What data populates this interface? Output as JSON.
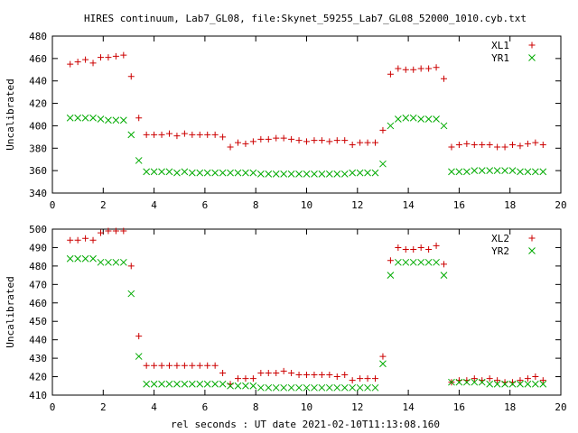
{
  "title": "HIRES continuum, Lab7_GL08, file:Skynet_59255_Lab7_GL08_52000_1010.cyb.txt",
  "xlabel": "rel seconds : UT date 2021-02-10T11:13:08.160",
  "chart_data": [
    {
      "type": "scatter",
      "ylabel": "Uncalibrated",
      "xlim": [
        0,
        20
      ],
      "ylim": [
        340,
        480
      ],
      "xticks": [
        0,
        2,
        4,
        6,
        8,
        10,
        12,
        14,
        16,
        18,
        20
      ],
      "yticks": [
        340,
        360,
        380,
        400,
        420,
        440,
        460,
        480
      ],
      "legend": "top-right",
      "series": [
        {
          "name": "XL1",
          "marker": "plus",
          "color": "#cc0000",
          "x": [
            0.7,
            1.0,
            1.3,
            1.6,
            1.9,
            2.2,
            2.5,
            2.8,
            3.1,
            3.4,
            3.7,
            4.0,
            4.3,
            4.6,
            4.9,
            5.2,
            5.5,
            5.8,
            6.1,
            6.4,
            6.7,
            7.0,
            7.3,
            7.6,
            7.9,
            8.2,
            8.5,
            8.8,
            9.1,
            9.4,
            9.7,
            10.0,
            10.3,
            10.6,
            10.9,
            11.2,
            11.5,
            11.8,
            12.1,
            12.4,
            12.7,
            13.0,
            13.3,
            13.6,
            13.9,
            14.2,
            14.5,
            14.8,
            15.1,
            15.4,
            15.7,
            16.0,
            16.3,
            16.6,
            16.9,
            17.2,
            17.5,
            17.8,
            18.1,
            18.4,
            18.7,
            19.0,
            19.3
          ],
          "y": [
            455,
            457,
            459,
            456,
            461,
            461,
            462,
            463,
            444,
            407,
            392,
            392,
            392,
            393,
            391,
            393,
            392,
            392,
            392,
            392,
            390,
            381,
            385,
            384,
            386,
            388,
            388,
            389,
            389,
            388,
            387,
            386,
            387,
            387,
            386,
            387,
            387,
            383,
            385,
            385,
            385,
            396,
            446,
            451,
            450,
            450,
            451,
            451,
            452,
            442,
            381,
            383,
            384,
            383,
            383,
            383,
            381,
            381,
            383,
            382,
            384,
            385,
            383
          ]
        },
        {
          "name": "YR1",
          "marker": "cross",
          "color": "#00aa00",
          "x": [
            0.7,
            1.0,
            1.3,
            1.6,
            1.9,
            2.2,
            2.5,
            2.8,
            3.1,
            3.4,
            3.7,
            4.0,
            4.3,
            4.6,
            4.9,
            5.2,
            5.5,
            5.8,
            6.1,
            6.4,
            6.7,
            7.0,
            7.3,
            7.6,
            7.9,
            8.2,
            8.5,
            8.8,
            9.1,
            9.4,
            9.7,
            10.0,
            10.3,
            10.6,
            10.9,
            11.2,
            11.5,
            11.8,
            12.1,
            12.4,
            12.7,
            13.0,
            13.3,
            13.6,
            13.9,
            14.2,
            14.5,
            14.8,
            15.1,
            15.4,
            15.7,
            16.0,
            16.3,
            16.6,
            16.9,
            17.2,
            17.5,
            17.8,
            18.1,
            18.4,
            18.7,
            19.0,
            19.3
          ],
          "y": [
            407,
            407,
            407,
            407,
            406,
            405,
            405,
            405,
            392,
            369,
            359,
            359,
            359,
            359,
            358,
            359,
            358,
            358,
            358,
            358,
            358,
            358,
            358,
            358,
            358,
            357,
            357,
            357,
            357,
            357,
            357,
            357,
            357,
            357,
            357,
            357,
            357,
            358,
            358,
            358,
            358,
            366,
            400,
            406,
            407,
            407,
            406,
            406,
            406,
            400,
            359,
            359,
            359,
            360,
            360,
            360,
            360,
            360,
            360,
            359,
            359,
            359,
            359
          ]
        }
      ]
    },
    {
      "type": "scatter",
      "ylabel": "Uncalibrated",
      "xlim": [
        0,
        20
      ],
      "ylim": [
        410,
        500
      ],
      "xticks": [
        0,
        2,
        4,
        6,
        8,
        10,
        12,
        14,
        16,
        18,
        20
      ],
      "yticks": [
        410,
        420,
        430,
        440,
        450,
        460,
        470,
        480,
        490,
        500
      ],
      "legend": "top-right",
      "series": [
        {
          "name": "XL2",
          "marker": "plus",
          "color": "#cc0000",
          "x": [
            0.7,
            1.0,
            1.3,
            1.6,
            1.9,
            2.2,
            2.5,
            2.8,
            3.1,
            3.4,
            3.7,
            4.0,
            4.3,
            4.6,
            4.9,
            5.2,
            5.5,
            5.8,
            6.1,
            6.4,
            6.7,
            7.0,
            7.3,
            7.6,
            7.9,
            8.2,
            8.5,
            8.8,
            9.1,
            9.4,
            9.7,
            10.0,
            10.3,
            10.6,
            10.9,
            11.2,
            11.5,
            11.8,
            12.1,
            12.4,
            12.7,
            13.0,
            13.3,
            13.6,
            13.9,
            14.2,
            14.5,
            14.8,
            15.1,
            15.4,
            15.7,
            16.0,
            16.3,
            16.6,
            16.9,
            17.2,
            17.5,
            17.8,
            18.1,
            18.4,
            18.7,
            19.0,
            19.3
          ],
          "y": [
            494,
            494,
            495,
            494,
            498,
            499,
            499,
            499,
            480,
            442,
            426,
            426,
            426,
            426,
            426,
            426,
            426,
            426,
            426,
            426,
            422,
            416,
            419,
            419,
            419,
            422,
            422,
            422,
            423,
            422,
            421,
            421,
            421,
            421,
            421,
            420,
            421,
            418,
            419,
            419,
            419,
            431,
            483,
            490,
            489,
            489,
            490,
            489,
            491,
            481,
            417,
            418,
            418,
            419,
            418,
            419,
            418,
            417,
            417,
            418,
            419,
            420,
            418
          ]
        },
        {
          "name": "YR2",
          "marker": "cross",
          "color": "#00aa00",
          "x": [
            0.7,
            1.0,
            1.3,
            1.6,
            1.9,
            2.2,
            2.5,
            2.8,
            3.1,
            3.4,
            3.7,
            4.0,
            4.3,
            4.6,
            4.9,
            5.2,
            5.5,
            5.8,
            6.1,
            6.4,
            6.7,
            7.0,
            7.3,
            7.6,
            7.9,
            8.2,
            8.5,
            8.8,
            9.1,
            9.4,
            9.7,
            10.0,
            10.3,
            10.6,
            10.9,
            11.2,
            11.5,
            11.8,
            12.1,
            12.4,
            12.7,
            13.0,
            13.3,
            13.6,
            13.9,
            14.2,
            14.5,
            14.8,
            15.1,
            15.4,
            15.7,
            16.0,
            16.3,
            16.6,
            16.9,
            17.2,
            17.5,
            17.8,
            18.1,
            18.4,
            18.7,
            19.0,
            19.3
          ],
          "y": [
            484,
            484,
            484,
            484,
            482,
            482,
            482,
            482,
            465,
            431,
            416,
            416,
            416,
            416,
            416,
            416,
            416,
            416,
            416,
            416,
            416,
            415,
            415,
            415,
            415,
            414,
            414,
            414,
            414,
            414,
            414,
            414,
            414,
            414,
            414,
            414,
            414,
            414,
            414,
            414,
            414,
            427,
            475,
            482,
            482,
            482,
            482,
            482,
            482,
            475,
            417,
            417,
            417,
            417,
            417,
            416,
            416,
            416,
            416,
            416,
            416,
            416,
            416
          ]
        }
      ]
    }
  ]
}
